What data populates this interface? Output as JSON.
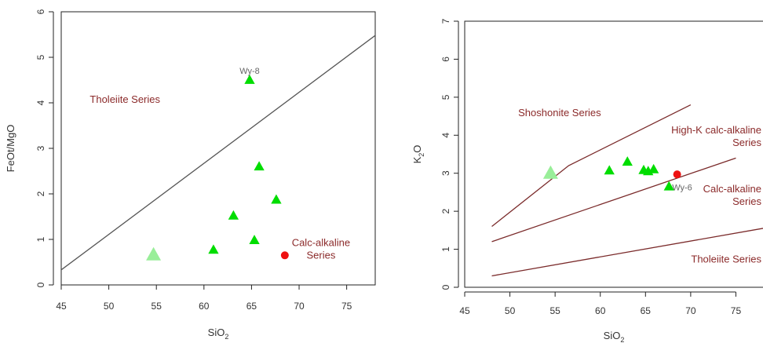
{
  "chart_data": [
    {
      "type": "scatter",
      "xlabel": "SiO",
      "xlabel_sub": "2",
      "ylabel": "FeOt/MgO",
      "xlim": [
        45,
        78
      ],
      "ylim": [
        0,
        6
      ],
      "xticks": [
        45,
        50,
        55,
        60,
        65,
        70,
        75
      ],
      "yticks": [
        0,
        1,
        2,
        3,
        4,
        5,
        6
      ],
      "grid": false,
      "boundaries": [
        {
          "points": [
            [
              45,
              0.33
            ],
            [
              78,
              5.48
            ]
          ],
          "color": "#555555"
        }
      ],
      "region_labels": [
        {
          "lines": [
            "Tholeiite Series"
          ],
          "x": 51.7,
          "y": 4.0,
          "anchor": "middle"
        },
        {
          "lines": [
            "Calc-alkaline",
            "Series"
          ],
          "x": 72.3,
          "y": 0.85,
          "anchor": "middle"
        }
      ],
      "series": [
        {
          "marker": "triangle",
          "color": "#00dd00",
          "size": 7,
          "points": [
            [
              64.8,
              4.5
            ],
            [
              65.8,
              2.6
            ],
            [
              67.6,
              1.87
            ],
            [
              63.1,
              1.52
            ],
            [
              65.3,
              0.98
            ],
            [
              61.0,
              0.77
            ]
          ]
        },
        {
          "marker": "triangle",
          "color": "#99ee99",
          "size": 10,
          "points": [
            [
              54.7,
              0.66
            ]
          ]
        },
        {
          "marker": "circle",
          "color": "#ee1111",
          "size": 5,
          "points": [
            [
              68.5,
              0.65
            ]
          ]
        }
      ],
      "point_labels": [
        {
          "text": "Wy-8",
          "x": 64.8,
          "y": 4.5
        }
      ]
    },
    {
      "type": "scatter",
      "xlabel": "SiO",
      "xlabel_sub": "2",
      "ylabel": "K",
      "ylabel_sub": "2",
      "ylabel_tail": "O",
      "xlim": [
        45,
        78
      ],
      "ylim": [
        0,
        7
      ],
      "xticks": [
        45,
        50,
        55,
        60,
        65,
        70,
        75
      ],
      "yticks": [
        0,
        1,
        2,
        3,
        4,
        5,
        6,
        7
      ],
      "grid": false,
      "boundaries": [
        {
          "points": [
            [
              48,
              1.6
            ],
            [
              56.5,
              3.2
            ],
            [
              70,
              4.8
            ]
          ],
          "color": "#7a2a2a"
        },
        {
          "points": [
            [
              48,
              1.2
            ],
            [
              75,
              3.4
            ]
          ],
          "color": "#7a2a2a"
        },
        {
          "points": [
            [
              48,
              0.3
            ],
            [
              78,
              1.55
            ]
          ],
          "color": "#7a2a2a"
        }
      ],
      "region_labels": [
        {
          "lines": [
            "Shoshonite Series"
          ],
          "x": 55.5,
          "y": 4.5,
          "anchor": "middle"
        },
        {
          "lines": [
            "High-K calc-alkaline",
            "Series"
          ],
          "x": 78,
          "y": 4.05,
          "anchor": "end"
        },
        {
          "lines": [
            "Calc-alkaline",
            "Series"
          ],
          "x": 78,
          "y": 2.5,
          "anchor": "end"
        },
        {
          "lines": [
            "Tholeiite Series"
          ],
          "x": 78,
          "y": 0.65,
          "anchor": "end"
        }
      ],
      "series": [
        {
          "marker": "triangle",
          "color": "#00dd00",
          "size": 7,
          "points": [
            [
              61.0,
              3.07
            ],
            [
              63.0,
              3.3
            ],
            [
              64.8,
              3.08
            ],
            [
              65.3,
              3.05
            ],
            [
              65.9,
              3.1
            ],
            [
              67.6,
              2.65
            ]
          ]
        },
        {
          "marker": "triangle",
          "color": "#99ee99",
          "size": 10,
          "points": [
            [
              54.5,
              3.0
            ]
          ]
        },
        {
          "marker": "circle",
          "color": "#ee1111",
          "size": 5,
          "points": [
            [
              68.5,
              2.97
            ]
          ]
        }
      ],
      "point_labels": [
        {
          "text": "Wy-6",
          "x": 67.6,
          "y": 2.65,
          "offset": "right"
        }
      ]
    }
  ]
}
